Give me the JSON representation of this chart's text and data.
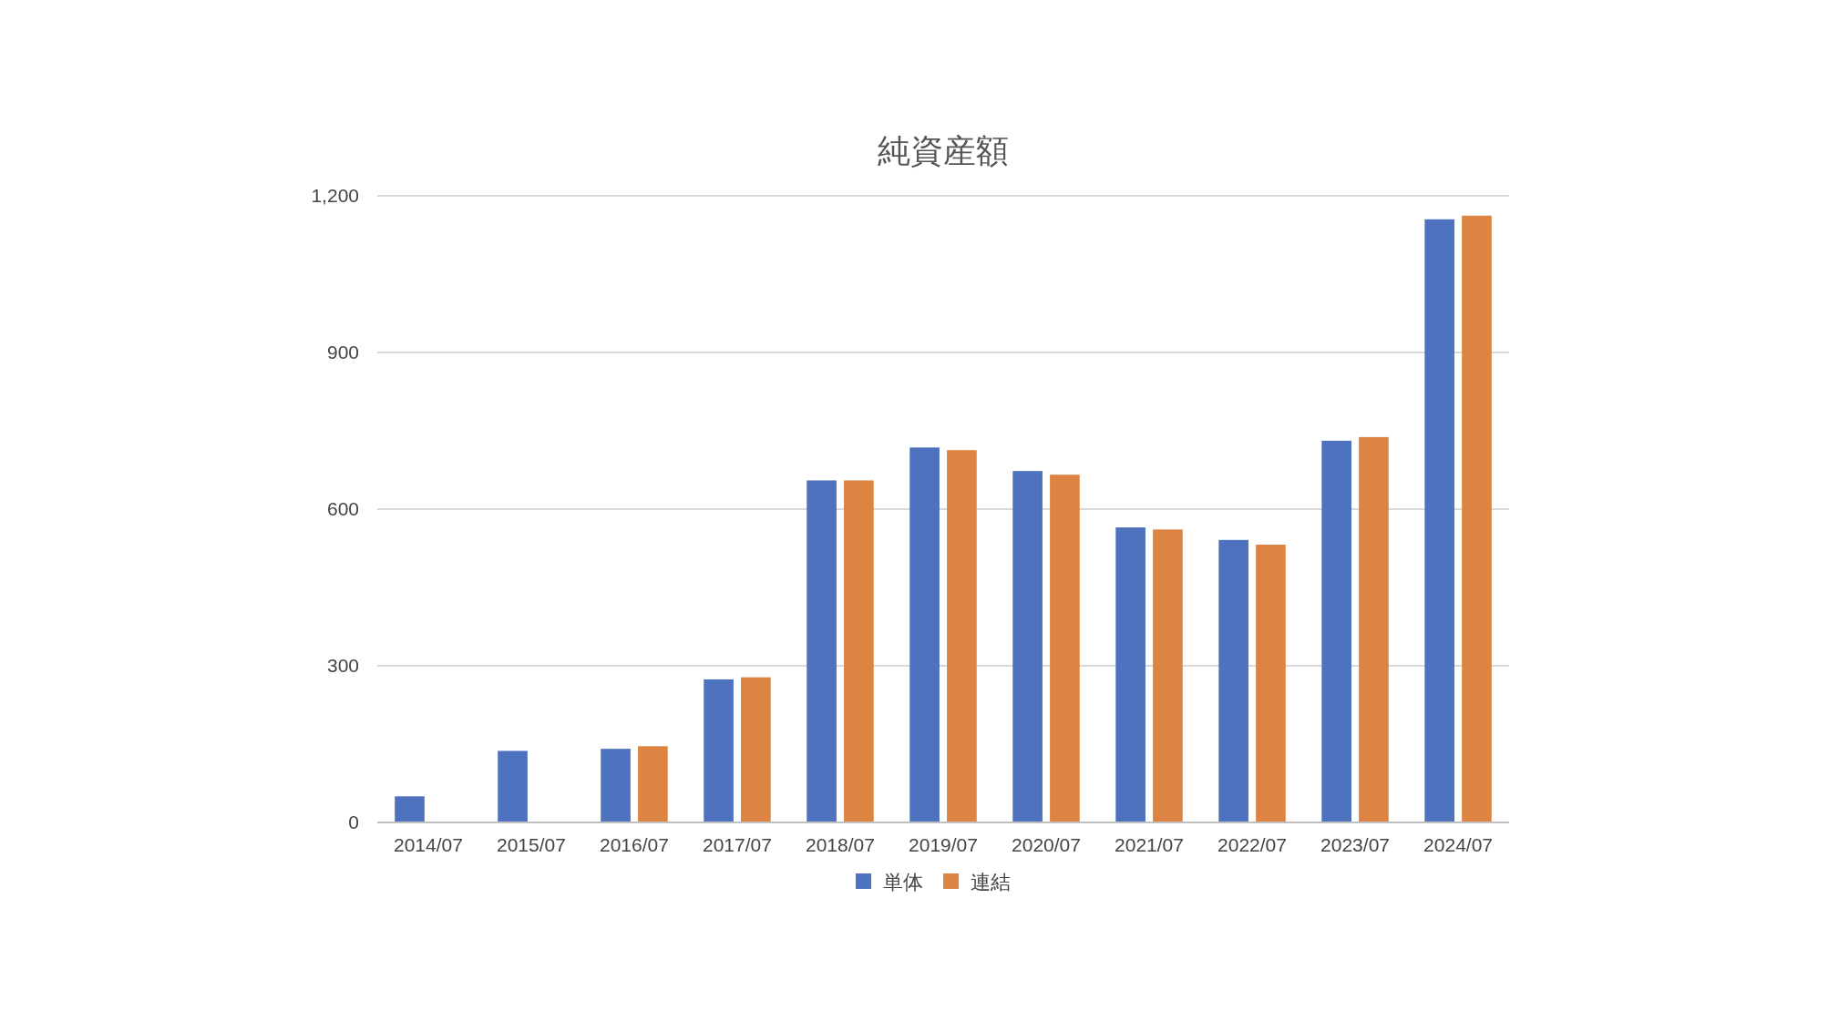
{
  "chart_data": {
    "type": "bar",
    "title": "純資産額",
    "categories": [
      "2014/07",
      "2015/07",
      "2016/07",
      "2017/07",
      "2018/07",
      "2019/07",
      "2020/07",
      "2021/07",
      "2022/07",
      "2023/07",
      "2024/07"
    ],
    "series": [
      {
        "name": "単体",
        "color": "#4e72be",
        "values": [
          50,
          137,
          141,
          274,
          655,
          718,
          673,
          565,
          541,
          731,
          1155
        ]
      },
      {
        "name": "連結",
        "color": "#dd8443",
        "values": [
          null,
          null,
          146,
          278,
          655,
          713,
          666,
          561,
          532,
          738,
          1162
        ]
      }
    ],
    "ylim": [
      0,
      1200
    ],
    "yticks": [
      0,
      300,
      600,
      900,
      {
        "value": 1200,
        "label": "1,200"
      }
    ],
    "grid": "y",
    "legend": "bottom"
  }
}
